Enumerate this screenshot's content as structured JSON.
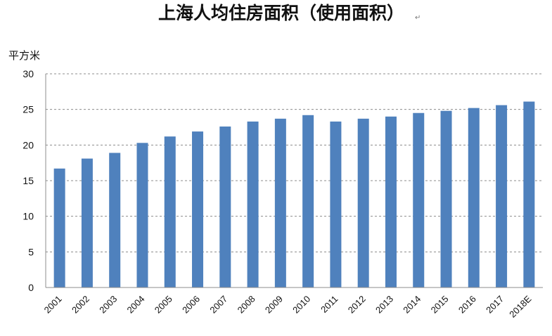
{
  "chart_data": {
    "type": "bar",
    "title": "上海人均住房面积（使用面积）",
    "title_mark": "↵",
    "ylabel": "平方米",
    "xlabel": "",
    "ylim": [
      0,
      30
    ],
    "yticks": [
      0,
      5,
      10,
      15,
      20,
      25,
      30
    ],
    "grid": true,
    "grid_style": "dashed",
    "legend": "none",
    "bar_color": "#4f81bd",
    "categories": [
      "2001",
      "2002",
      "2003",
      "2004",
      "2005",
      "2006",
      "2007",
      "2008",
      "2009",
      "2010",
      "2011",
      "2012",
      "2013",
      "2014",
      "2015",
      "2016",
      "2017",
      "2018E"
    ],
    "values": [
      16.7,
      18.1,
      18.9,
      20.3,
      21.2,
      21.9,
      22.6,
      23.3,
      23.7,
      24.2,
      23.3,
      23.7,
      24.0,
      24.5,
      24.8,
      25.2,
      25.6,
      26.1
    ]
  }
}
